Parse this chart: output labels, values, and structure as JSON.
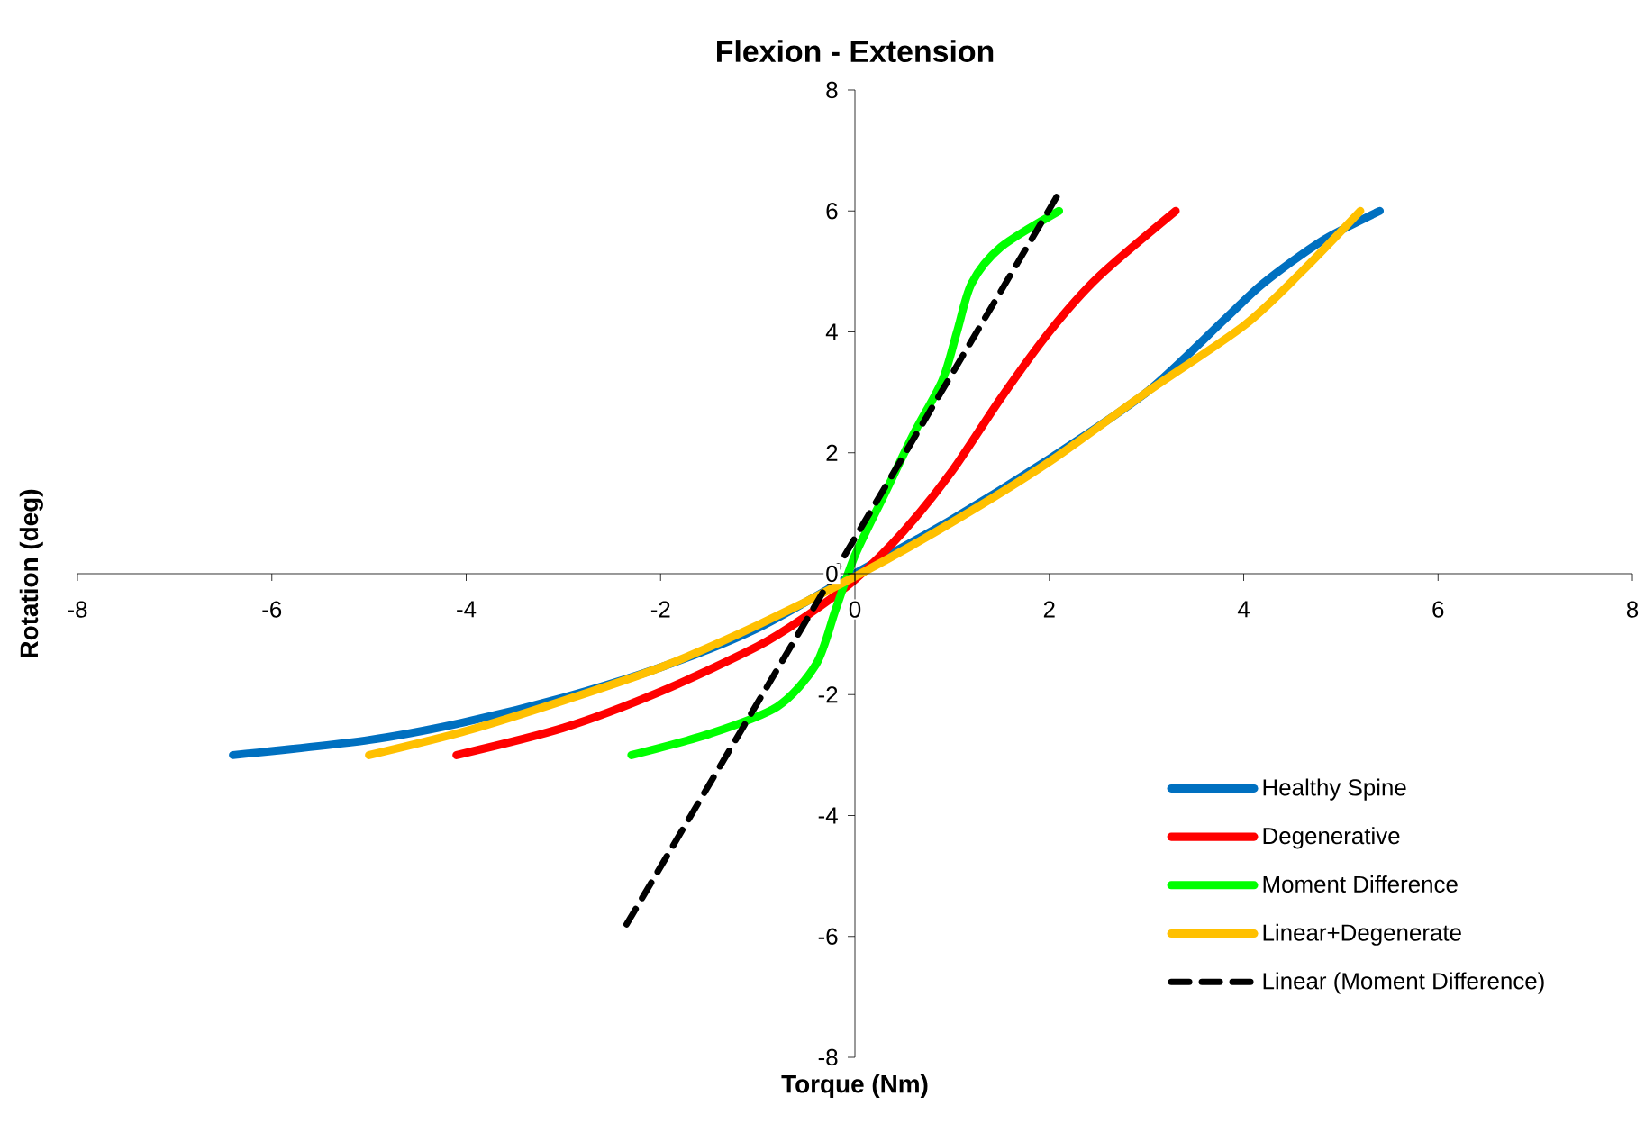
{
  "chart_data": {
    "type": "line",
    "title": "Flexion - Extension",
    "xlabel": "Torque (Nm)",
    "ylabel": "Rotation (deg)",
    "xlim": [
      -8,
      8
    ],
    "ylim": [
      -8,
      8
    ],
    "xticks": [
      -8,
      -6,
      -4,
      -2,
      0,
      2,
      4,
      6,
      8
    ],
    "yticks": [
      -8,
      -6,
      -4,
      -2,
      0,
      2,
      4,
      6,
      8
    ],
    "legend": "bottom right",
    "series": [
      {
        "name": "Healthy Spine",
        "color": "#0070c0",
        "x": [
          -6.4,
          -5,
          -4,
          -3,
          -2,
          -1,
          0,
          1,
          2,
          3,
          3.8,
          4.2,
          4.8,
          5.4
        ],
        "values": [
          -3,
          -2.75,
          -2.45,
          -2.05,
          -1.55,
          -0.9,
          0,
          0.9,
          1.9,
          3.0,
          4.2,
          4.8,
          5.5,
          6
        ]
      },
      {
        "name": "Degenerative",
        "color": "#ff0000",
        "x": [
          -4.1,
          -3,
          -2,
          -1,
          -0.5,
          0,
          0.5,
          1,
          1.5,
          2,
          2.5,
          3.3
        ],
        "values": [
          -3,
          -2.55,
          -1.95,
          -1.2,
          -0.7,
          -0.1,
          0.7,
          1.7,
          2.9,
          4.0,
          4.9,
          6
        ]
      },
      {
        "name": "Moment Difference",
        "color": "#00ff00",
        "x": [
          -2.3,
          -1.5,
          -0.8,
          -0.4,
          -0.2,
          0,
          0.3,
          0.6,
          0.9,
          1.05,
          1.2,
          1.5,
          2.1
        ],
        "values": [
          -3,
          -2.65,
          -2.2,
          -1.5,
          -0.6,
          0.3,
          1.3,
          2.3,
          3.2,
          4.0,
          4.8,
          5.4,
          6
        ]
      },
      {
        "name": "Linear+Degenerate",
        "color": "#ffc000",
        "x": [
          -5,
          -4,
          -3,
          -2,
          -1,
          0,
          1,
          2,
          3,
          4,
          4.6,
          5.2
        ],
        "values": [
          -3,
          -2.6,
          -2.1,
          -1.55,
          -0.85,
          -0.05,
          0.85,
          1.85,
          3.0,
          4.1,
          5.0,
          6
        ]
      },
      {
        "name": "Linear (Moment Difference)",
        "color": "#000000",
        "line_style": "dashed",
        "x": [
          -2.35,
          2.1
        ],
        "values": [
          -5.8,
          6.3
        ]
      }
    ]
  }
}
